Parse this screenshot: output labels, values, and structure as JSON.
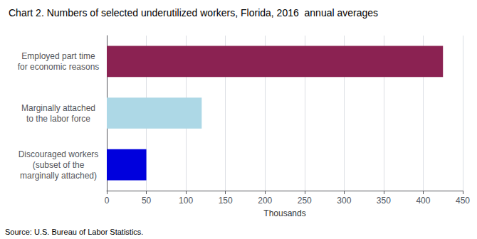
{
  "chart_data": {
    "type": "bar",
    "orientation": "horizontal",
    "title": "Chart 2. Numbers of selected underutilized workers, Florida, 2016  annual averages",
    "annotations": [
      "Source: U.S. Bureau of Labor Statistics."
    ],
    "categories": [
      "Discouraged workers\n(subset of the\nmarginally attached)",
      "Marginally attached\nto the labor force",
      "Employed part time\nfor economic reasons"
    ],
    "values": [
      50,
      120,
      425
    ],
    "colors": [
      "#0000dd",
      "#add8e6",
      "#8b2252"
    ],
    "xlabel": "Thousands",
    "xlim": [
      0,
      450
    ],
    "xticks": [
      0,
      50,
      100,
      150,
      200,
      250,
      300,
      350,
      400,
      450
    ],
    "grid": true
  }
}
